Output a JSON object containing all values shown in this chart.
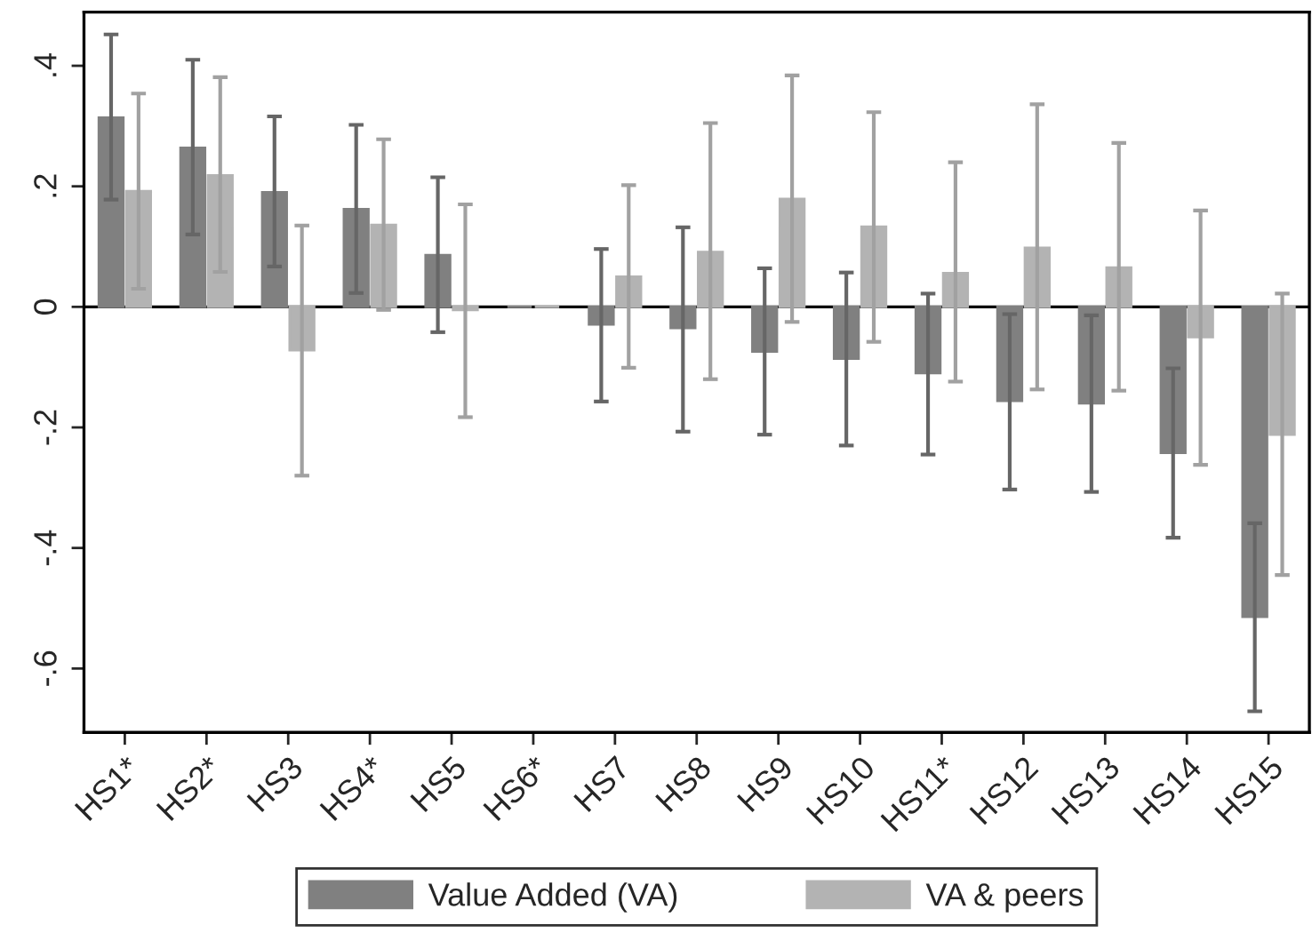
{
  "chart_data": {
    "type": "bar",
    "categories": [
      "HS1*",
      "HS2*",
      "HS3",
      "HS4*",
      "HS5",
      "HS6*",
      "HS7",
      "HS8",
      "HS9",
      "HS10",
      "HS11*",
      "HS12",
      "HS13",
      "HS14",
      "HS15"
    ],
    "series": [
      {
        "name": "Value Added (VA)",
        "color": "#808080",
        "values": [
          0.314,
          0.264,
          0.19,
          0.162,
          0.086,
          0,
          -0.029,
          -0.035,
          -0.074,
          -0.086,
          -0.11,
          -0.156,
          -0.16,
          -0.242,
          -0.514
        ],
        "errors": [
          [
            0.178,
            0.452
          ],
          [
            0.12,
            0.41
          ],
          [
            0.067,
            0.316
          ],
          [
            0.023,
            0.302
          ],
          [
            -0.042,
            0.215
          ],
          null,
          [
            -0.157,
            0.096
          ],
          [
            -0.207,
            0.132
          ],
          [
            -0.212,
            0.064
          ],
          [
            -0.23,
            0.057
          ],
          [
            -0.245,
            0.022
          ],
          [
            -0.303,
            -0.012
          ],
          [
            -0.307,
            -0.014
          ],
          [
            -0.383,
            -0.102
          ],
          [
            -0.671,
            -0.359
          ]
        ]
      },
      {
        "name": "VA & peers",
        "color": "#b3b3b3",
        "values": [
          0.192,
          0.218,
          -0.072,
          0.136,
          -0.005,
          0,
          0.05,
          0.091,
          0.179,
          0.133,
          0.056,
          0.098,
          0.065,
          -0.05,
          -0.212
        ],
        "errors": [
          [
            0.03,
            0.354
          ],
          [
            0.058,
            0.381
          ],
          [
            -0.28,
            0.135
          ],
          [
            -0.005,
            0.278
          ],
          [
            -0.183,
            0.17
          ],
          null,
          [
            -0.101,
            0.202
          ],
          [
            -0.12,
            0.305
          ],
          [
            -0.025,
            0.384
          ],
          [
            -0.058,
            0.323
          ],
          [
            -0.124,
            0.24
          ],
          [
            -0.137,
            0.336
          ],
          [
            -0.139,
            0.272
          ],
          [
            -0.262,
            0.16
          ],
          [
            -0.445,
            0.022
          ]
        ]
      }
    ],
    "ylim": [
      -0.706,
      0.489
    ],
    "yticks": [
      {
        "value": -0.6,
        "label": "-.6"
      },
      {
        "value": -0.4,
        "label": "-.4"
      },
      {
        "value": -0.2,
        "label": "-.2"
      },
      {
        "value": 0,
        "label": "0"
      },
      {
        "value": 0.2,
        "label": ".2"
      },
      {
        "value": 0.4,
        "label": ".4"
      }
    ],
    "ref_lines": [
      {
        "axis": "y",
        "value": 0,
        "color": "#000000"
      }
    ],
    "grid": false,
    "legend": "bottom"
  }
}
